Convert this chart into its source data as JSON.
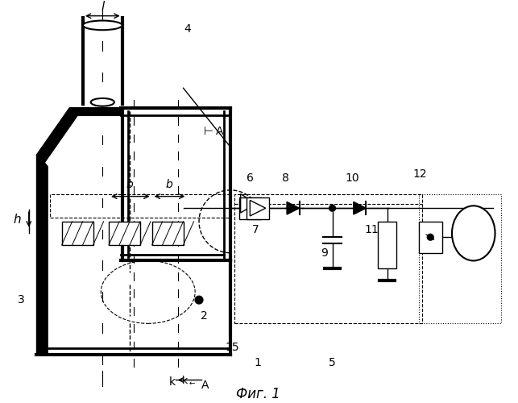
{
  "fig_width": 6.43,
  "fig_height": 5.0,
  "dpi": 100,
  "bg_color": "#ffffff",
  "line_color": "#000000",
  "title": "Фиг. 1",
  "labels": {
    "l": "l",
    "b_left": "b",
    "b_right": "b",
    "h": "h",
    "num_1": "1",
    "num_2": "2",
    "num_3": "3",
    "num_4": "4",
    "num_5": "5",
    "num_6": "6",
    "num_7": "7",
    "num_8": "8",
    "num_9": "9",
    "num_10": "10",
    "num_11": "11",
    "num_12": "12",
    "num_15": "15",
    "A_top": "A",
    "A_bot": "A"
  }
}
